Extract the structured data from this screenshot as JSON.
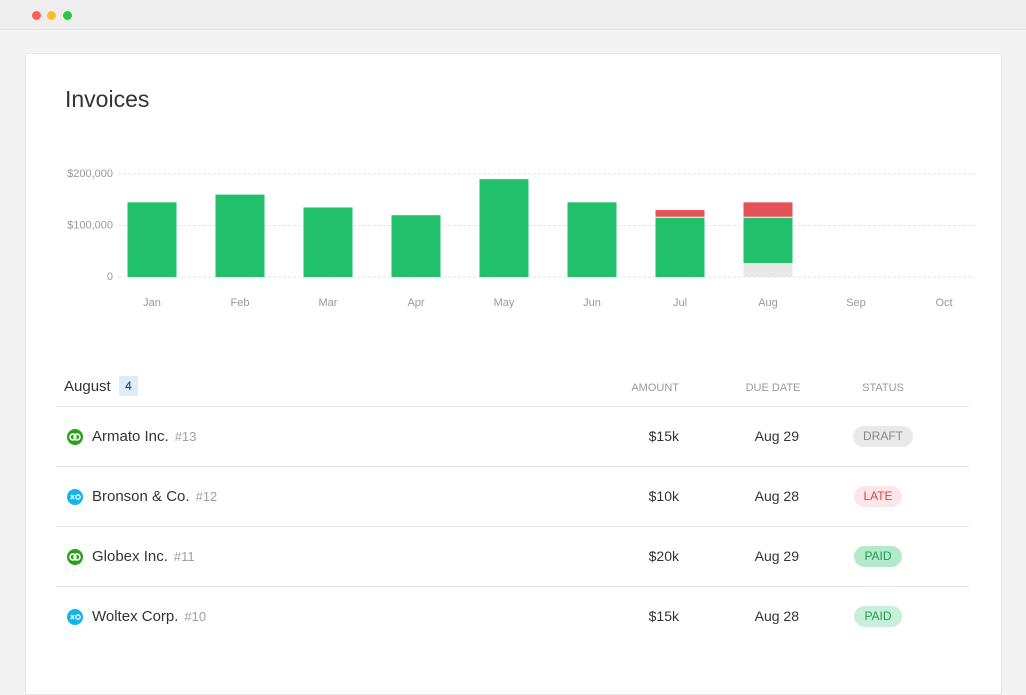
{
  "title": "Invoices",
  "chart_data": {
    "type": "bar",
    "stacked": true,
    "categories": [
      "Jan",
      "Feb",
      "Mar",
      "Apr",
      "May",
      "Jun",
      "Jul",
      "Aug",
      "Sep",
      "Oct"
    ],
    "series": [
      {
        "color": "#e8e8e8",
        "values": [
          null,
          null,
          null,
          null,
          null,
          null,
          null,
          25000,
          null,
          null
        ]
      },
      {
        "color": "#22c06b",
        "values": [
          145000,
          160000,
          135000,
          120000,
          190000,
          145000,
          115000,
          90000,
          null,
          null
        ]
      },
      {
        "color": "#e5525a",
        "values": [
          null,
          null,
          null,
          null,
          null,
          null,
          15000,
          30000,
          null,
          null
        ]
      }
    ],
    "ylim": [
      0,
      200000
    ],
    "yticks": [
      0,
      {
        "value": 100000,
        "label": "$100,000"
      },
      {
        "value": 200000,
        "label": "$200,000"
      }
    ],
    "grid": true
  },
  "table": {
    "title": "August",
    "count": "4",
    "columns": [
      "AMOUNT",
      "DUE DATE",
      "STATUS"
    ],
    "rows": [
      [
        "Armato Inc.",
        "#13",
        "$15k",
        "Aug 29",
        "DRAFT"
      ],
      [
        "Bronson & Co.",
        "#12",
        "$10k",
        "Aug 28",
        "LATE"
      ],
      [
        "Globex Inc.",
        "#11",
        "$20k",
        "Aug 29",
        "PAID"
      ],
      [
        "Woltex Corp.",
        "#10",
        "$15k",
        "Aug 28",
        "PAID"
      ]
    ]
  }
}
